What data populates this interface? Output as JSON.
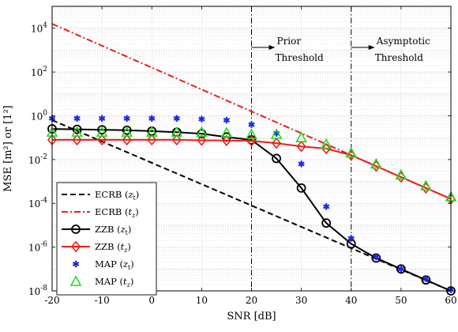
{
  "chart_data": {
    "type": "line",
    "xlabel": "SNR [dB]",
    "ylabel": "MSE [m²] or [1²]",
    "xlim": [
      -20,
      60
    ],
    "ylim_log10": [
      -8,
      5
    ],
    "yscale": "log",
    "grid": true,
    "x_ticks": [
      "-20",
      "-10",
      "0",
      "10",
      "20",
      "30",
      "40",
      "50",
      "60"
    ],
    "x_tick_values": [
      -20,
      -10,
      0,
      10,
      20,
      30,
      40,
      50,
      60
    ],
    "y_ticks": [
      {
        "base": "10",
        "exp": "4",
        "log10": 4
      },
      {
        "base": "10",
        "exp": "2",
        "log10": 2
      },
      {
        "base": "10",
        "exp": "0",
        "log10": 0
      },
      {
        "base": "10",
        "exp": "-2",
        "log10": -2
      },
      {
        "base": "10",
        "exp": "-4",
        "log10": -4
      },
      {
        "base": "10",
        "exp": "-6",
        "log10": -6
      },
      {
        "base": "10",
        "exp": "-8",
        "log10": -8
      }
    ],
    "vlines": [
      {
        "x": 20,
        "label1": "Prior",
        "label2": "Threshold"
      },
      {
        "x": 40,
        "label1": "Asymptotic",
        "label2": "Threshold"
      }
    ],
    "legend_position": "bottom-left",
    "series": [
      {
        "name": "ECRB (z_t)",
        "legend_main": "ECRB",
        "legend_sub": "z",
        "legend_subsub": "t",
        "color": "#000000",
        "style": "dashed",
        "marker": "none",
        "x": [
          -20,
          60
        ],
        "log10_y": [
          -0.2,
          -8.0
        ]
      },
      {
        "name": "ECRB (t_z)",
        "legend_main": "ECRB",
        "legend_sub": "t",
        "legend_subsub": "z",
        "color": "#ee1c1c",
        "style": "dashdot",
        "marker": "none",
        "x": [
          -20,
          60
        ],
        "log10_y": [
          4.2,
          -3.8
        ]
      },
      {
        "name": "ZZB (z_t)",
        "legend_main": "ZZB",
        "legend_sub": "z",
        "legend_subsub": "t",
        "color": "#000000",
        "style": "solid",
        "marker": "circle",
        "x": [
          -20,
          -15,
          -10,
          -5,
          0,
          5,
          10,
          15,
          20,
          25,
          30,
          35,
          40,
          45,
          50,
          55,
          60
        ],
        "log10_y": [
          -0.6,
          -0.62,
          -0.64,
          -0.66,
          -0.7,
          -0.75,
          -0.82,
          -0.97,
          -1.1,
          -1.95,
          -3.3,
          -4.9,
          -5.85,
          -6.5,
          -7.0,
          -7.5,
          -8.0
        ]
      },
      {
        "name": "ZZB (t_z)",
        "legend_main": "ZZB",
        "legend_sub": "t",
        "legend_subsub": "z",
        "color": "#ee1c1c",
        "style": "solid",
        "marker": "diamond",
        "x": [
          -20,
          -15,
          -10,
          -5,
          0,
          5,
          10,
          15,
          20,
          25,
          30,
          35,
          40,
          45,
          50,
          55,
          60
        ],
        "log10_y": [
          -1.1,
          -1.1,
          -1.1,
          -1.1,
          -1.1,
          -1.1,
          -1.12,
          -1.13,
          -1.15,
          -1.25,
          -1.4,
          -1.5,
          -1.8,
          -2.3,
          -2.8,
          -3.3,
          -3.8
        ]
      },
      {
        "name": "MAP (z_t)",
        "legend_main": "MAP",
        "legend_sub": "z",
        "legend_subsub": "t",
        "color": "#1a2ce6",
        "style": "none",
        "marker": "asterisk",
        "x": [
          -20,
          -15,
          -10,
          -5,
          0,
          5,
          10,
          15,
          20,
          25,
          30,
          35,
          40,
          45,
          50,
          55,
          60
        ],
        "log10_y": [
          -0.12,
          -0.12,
          -0.12,
          -0.12,
          -0.12,
          -0.12,
          -0.15,
          -0.2,
          -0.4,
          -0.8,
          -2.2,
          -4.15,
          -5.6,
          -6.45,
          -7.0,
          -7.45,
          -7.95
        ]
      },
      {
        "name": "MAP (t_z)",
        "legend_main": "MAP",
        "legend_sub": "t",
        "legend_subsub": "z",
        "color": "#22dd22",
        "style": "none",
        "marker": "triangle",
        "x": [
          -20,
          -15,
          -10,
          -5,
          0,
          5,
          10,
          15,
          20,
          25,
          30,
          35,
          40,
          45,
          50,
          55,
          60
        ],
        "log10_y": [
          -0.75,
          -0.75,
          -0.75,
          -0.75,
          -0.75,
          -0.75,
          -0.75,
          -0.78,
          -0.85,
          -0.85,
          -1.0,
          -1.3,
          -1.7,
          -2.2,
          -2.7,
          -3.2,
          -3.7
        ]
      }
    ]
  }
}
